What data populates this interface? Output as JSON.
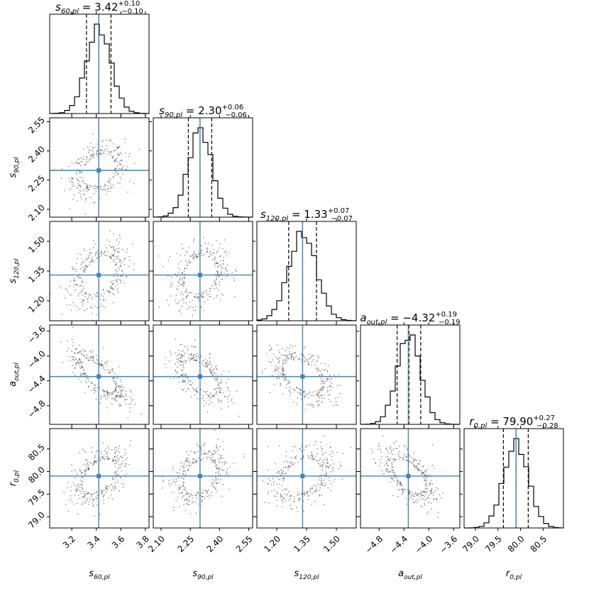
{
  "chart_data": {
    "type": "corner",
    "description": "MCMC posterior corner plot with 1D marginal histograms on the diagonal and 2D density contours below",
    "colors": {
      "truth": "#4682b4",
      "hist": "#000000",
      "quantile": "#000000"
    },
    "parameters": [
      {
        "key": "s60",
        "symbol": "s",
        "sub": "60,pl",
        "median": 3.42,
        "plus": 0.1,
        "minus": 0.1,
        "median_text": "3.42",
        "plus_text": "+0.10",
        "minus_text": "−0.10",
        "truth": 3.42,
        "range": [
          3.02,
          3.83
        ],
        "ticks": [
          3.2,
          3.4,
          3.6,
          3.8
        ],
        "tick_labels": [
          "3.2",
          "3.4",
          "3.6",
          "3.8"
        ]
      },
      {
        "key": "s90",
        "symbol": "s",
        "sub": "90,pl",
        "median": 2.3,
        "plus": 0.06,
        "minus": 0.06,
        "median_text": "2.30",
        "plus_text": "+0.06",
        "minus_text": "−0.06",
        "truth": 2.3,
        "range": [
          2.06,
          2.57
        ],
        "ticks": [
          2.1,
          2.25,
          2.4,
          2.55
        ],
        "tick_labels": [
          "2.10",
          "2.25",
          "2.40",
          "2.55"
        ]
      },
      {
        "key": "s120",
        "symbol": "s",
        "sub": "120,pl",
        "median": 1.33,
        "plus": 0.07,
        "minus": 0.07,
        "median_text": "1.33",
        "plus_text": "+0.07",
        "minus_text": "−0.07",
        "truth": 1.33,
        "range": [
          1.1,
          1.6
        ],
        "ticks": [
          1.2,
          1.35,
          1.5
        ],
        "tick_labels": [
          "1.20",
          "1.35",
          "1.50"
        ]
      },
      {
        "key": "aout",
        "symbol": "a",
        "sub": "out,pl",
        "median": -4.32,
        "plus": 0.19,
        "minus": 0.19,
        "median_text": "−4.32",
        "plus_text": "+0.19",
        "minus_text": "−0.19",
        "truth": -4.33,
        "range": [
          -5.1,
          -3.5
        ],
        "ticks": [
          -4.8,
          -4.4,
          -4.0,
          -3.6
        ],
        "tick_labels": [
          "−4.8",
          "−4.4",
          "−4.0",
          "−3.6"
        ]
      },
      {
        "key": "r0",
        "symbol": "r",
        "sub": "0,pl",
        "median": 79.9,
        "plus": 0.27,
        "minus": 0.28,
        "median_text": "79.90",
        "plus_text": "+0.27",
        "minus_text": "−0.28",
        "truth": 79.9,
        "range": [
          78.75,
          80.95
        ],
        "ticks": [
          79.0,
          79.5,
          80.0,
          80.5
        ],
        "tick_labels": [
          "79.0",
          "79.5",
          "80.0",
          "80.5"
        ]
      }
    ],
    "correlations": {
      "1-0": 0.3,
      "2-0": 0.38,
      "2-1": 0.22,
      "3-0": -0.72,
      "3-1": -0.58,
      "3-2": -0.46,
      "4-0": 0.48,
      "4-1": 0.38,
      "4-2": 0.32,
      "4-3": -0.58
    },
    "contour_levels": [
      0.5,
      1.0,
      1.5,
      2.0
    ],
    "histogram_bins": 20
  }
}
